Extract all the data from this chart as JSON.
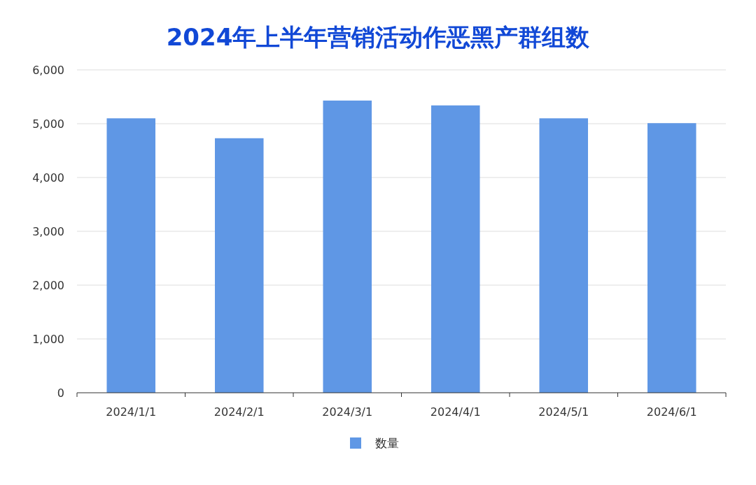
{
  "chart_data": {
    "type": "bar",
    "title": "2024年上半年营销活动作恶黑产群组数",
    "categories": [
      "2024/1/1",
      "2024/2/1",
      "2024/3/1",
      "2024/4/1",
      "2024/5/1",
      "2024/6/1"
    ],
    "series": [
      {
        "name": "数量",
        "color": "#5f97e5",
        "values": [
          5100,
          4730,
          5430,
          5340,
          5100,
          5010
        ]
      }
    ],
    "ylim": [
      0,
      6000
    ],
    "yticks": [
      {
        "value": 0,
        "label": "0"
      },
      {
        "value": 1000,
        "label": "1,000"
      },
      {
        "value": 2000,
        "label": "2,000"
      },
      {
        "value": 3000,
        "label": "3,000"
      },
      {
        "value": 4000,
        "label": "4,000"
      },
      {
        "value": 5000,
        "label": "5,000"
      },
      {
        "value": 6000,
        "label": "6,000"
      }
    ],
    "grid": "y",
    "legend": "bottom"
  }
}
